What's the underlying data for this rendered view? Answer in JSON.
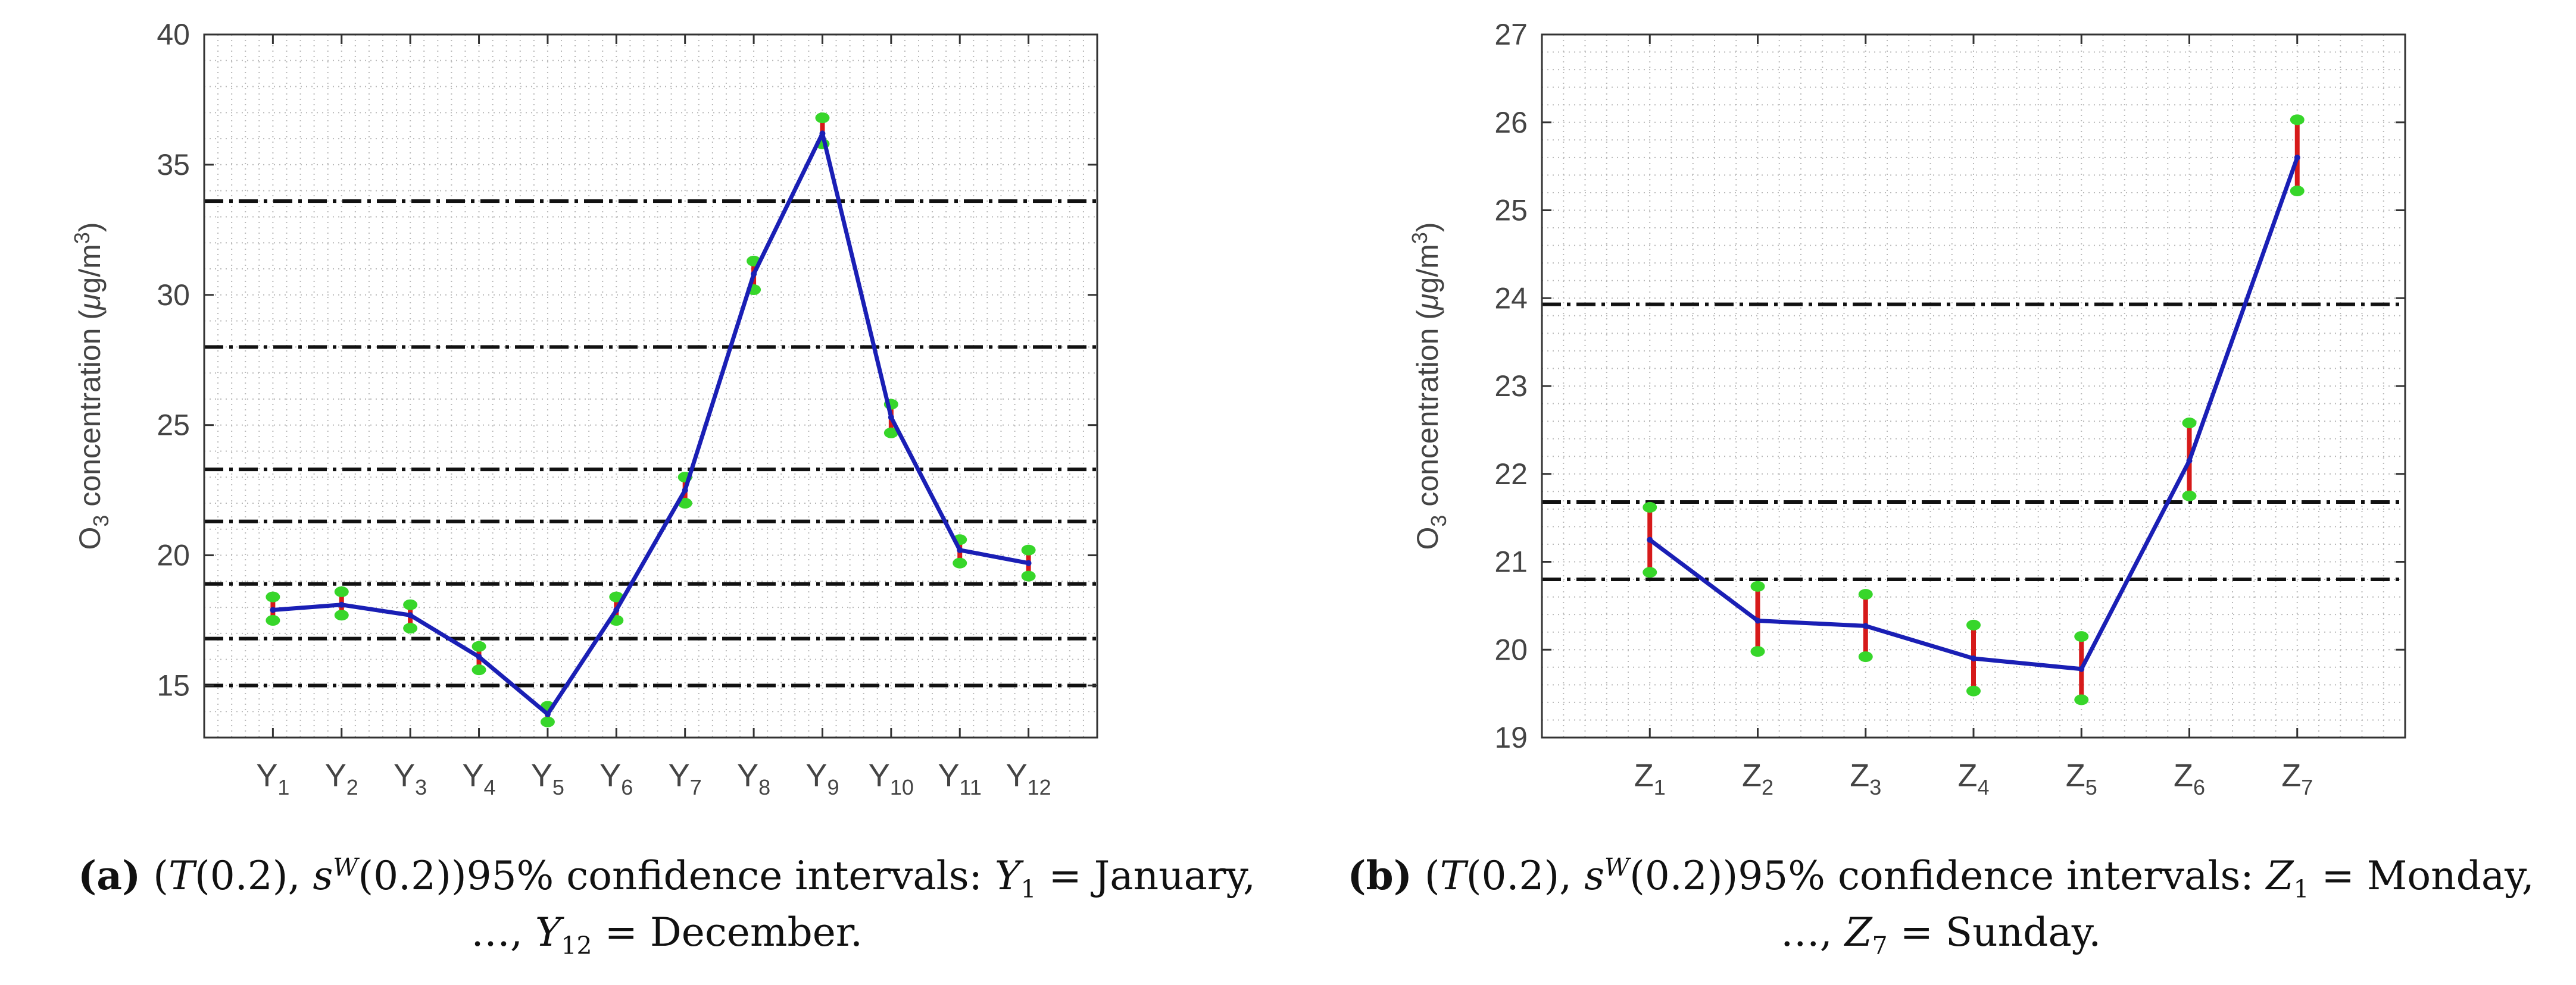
{
  "chart_data": [
    {
      "type": "line",
      "panel": "a",
      "title": "",
      "xlabel": "",
      "ylabel": "O3 concentration (μg/m3)",
      "ylim": [
        13,
        40
      ],
      "yticks": [
        15,
        20,
        25,
        30,
        35,
        40
      ],
      "grid": "dotted minor",
      "categories": [
        {
          "main": "Y",
          "sub": "1"
        },
        {
          "main": "Y",
          "sub": "2"
        },
        {
          "main": "Y",
          "sub": "3"
        },
        {
          "main": "Y",
          "sub": "4"
        },
        {
          "main": "Y",
          "sub": "5"
        },
        {
          "main": "Y",
          "sub": "6"
        },
        {
          "main": "Y",
          "sub": "7"
        },
        {
          "main": "Y",
          "sub": "8"
        },
        {
          "main": "Y",
          "sub": "9"
        },
        {
          "main": "Y",
          "sub": "10"
        },
        {
          "main": "Y",
          "sub": "11"
        },
        {
          "main": "Y",
          "sub": "12"
        }
      ],
      "series": [
        {
          "name": "estimate",
          "values": [
            17.9,
            18.1,
            17.7,
            16.1,
            13.9,
            17.9,
            22.5,
            30.8,
            36.2,
            25.3,
            20.2,
            19.7
          ]
        },
        {
          "name": "lower",
          "values": [
            17.5,
            17.7,
            17.2,
            15.6,
            13.6,
            17.5,
            22.0,
            30.2,
            35.8,
            24.7,
            19.7,
            19.2
          ]
        },
        {
          "name": "upper",
          "values": [
            18.4,
            18.6,
            18.1,
            16.5,
            14.2,
            18.4,
            23.0,
            31.3,
            36.8,
            25.8,
            20.6,
            20.2
          ]
        }
      ],
      "reference_lines": [
        {
          "y": 15.0,
          "style": "dash-dot"
        },
        {
          "y": 16.8,
          "style": "dash-dot"
        },
        {
          "y": 18.9,
          "style": "dash-dot"
        },
        {
          "y": 21.3,
          "style": "dash-dot"
        },
        {
          "y": 23.3,
          "style": "dash-dot"
        },
        {
          "y": 28.0,
          "style": "dash-dot"
        },
        {
          "y": 33.6,
          "style": "dash-dot"
        }
      ],
      "caption": {
        "label": "(a)",
        "line1_pre": "95% confidence intervals: ",
        "var1": "Y",
        "sub1": "1",
        "val1": "January,",
        "line2_start": "…,",
        "var2": "Y",
        "sub2": "12",
        "val2": "December."
      }
    },
    {
      "type": "line",
      "panel": "b",
      "title": "",
      "xlabel": "",
      "ylabel": "O3 concentration (μg/m3)",
      "ylim": [
        19,
        27
      ],
      "yticks": [
        19,
        20,
        21,
        22,
        23,
        24,
        25,
        26,
        27
      ],
      "grid": "dotted minor",
      "categories": [
        {
          "main": "Z",
          "sub": "1"
        },
        {
          "main": "Z",
          "sub": "2"
        },
        {
          "main": "Z",
          "sub": "3"
        },
        {
          "main": "Z",
          "sub": "4"
        },
        {
          "main": "Z",
          "sub": "5"
        },
        {
          "main": "Z",
          "sub": "6"
        },
        {
          "main": "Z",
          "sub": "7"
        }
      ],
      "series": [
        {
          "name": "estimate",
          "values": [
            21.25,
            20.33,
            20.27,
            19.9,
            19.78,
            22.15,
            25.6
          ]
        },
        {
          "name": "lower",
          "values": [
            20.88,
            19.98,
            19.92,
            19.53,
            19.43,
            21.75,
            25.22
          ]
        },
        {
          "name": "upper",
          "values": [
            21.62,
            20.72,
            20.63,
            20.28,
            20.15,
            22.58,
            26.03
          ]
        }
      ],
      "reference_lines": [
        {
          "y": 20.8,
          "style": "dash-dot"
        },
        {
          "y": 21.68,
          "style": "dash-dot"
        },
        {
          "y": 23.93,
          "style": "dash-dot"
        }
      ],
      "caption": {
        "label": "(b)",
        "line1_pre": "95% confidence intervals: ",
        "var1": "Z",
        "sub1": "1",
        "val1": "Monday,",
        "line2_start": "…,",
        "var2": "Z",
        "sub2": "7",
        "val2": "Sunday."
      }
    }
  ],
  "caption_common": {
    "T": "T",
    "arg": "(0.2)",
    "s": "s",
    "sup": "W",
    "eq": "="
  },
  "ylabel_parts": {
    "o": "O",
    "o_sub": "3",
    "text": " concentration (",
    "mu": "μ",
    "unit": "g/m",
    "unit_sup": "3",
    "close": ")"
  },
  "colors": {
    "line": "#1a1fb5",
    "errorbar": "#d61a1a",
    "marker": "#37d62a",
    "refline": "#111111",
    "grid": "#b8b8b8",
    "axis": "#333333",
    "tick_text": "#444444"
  }
}
